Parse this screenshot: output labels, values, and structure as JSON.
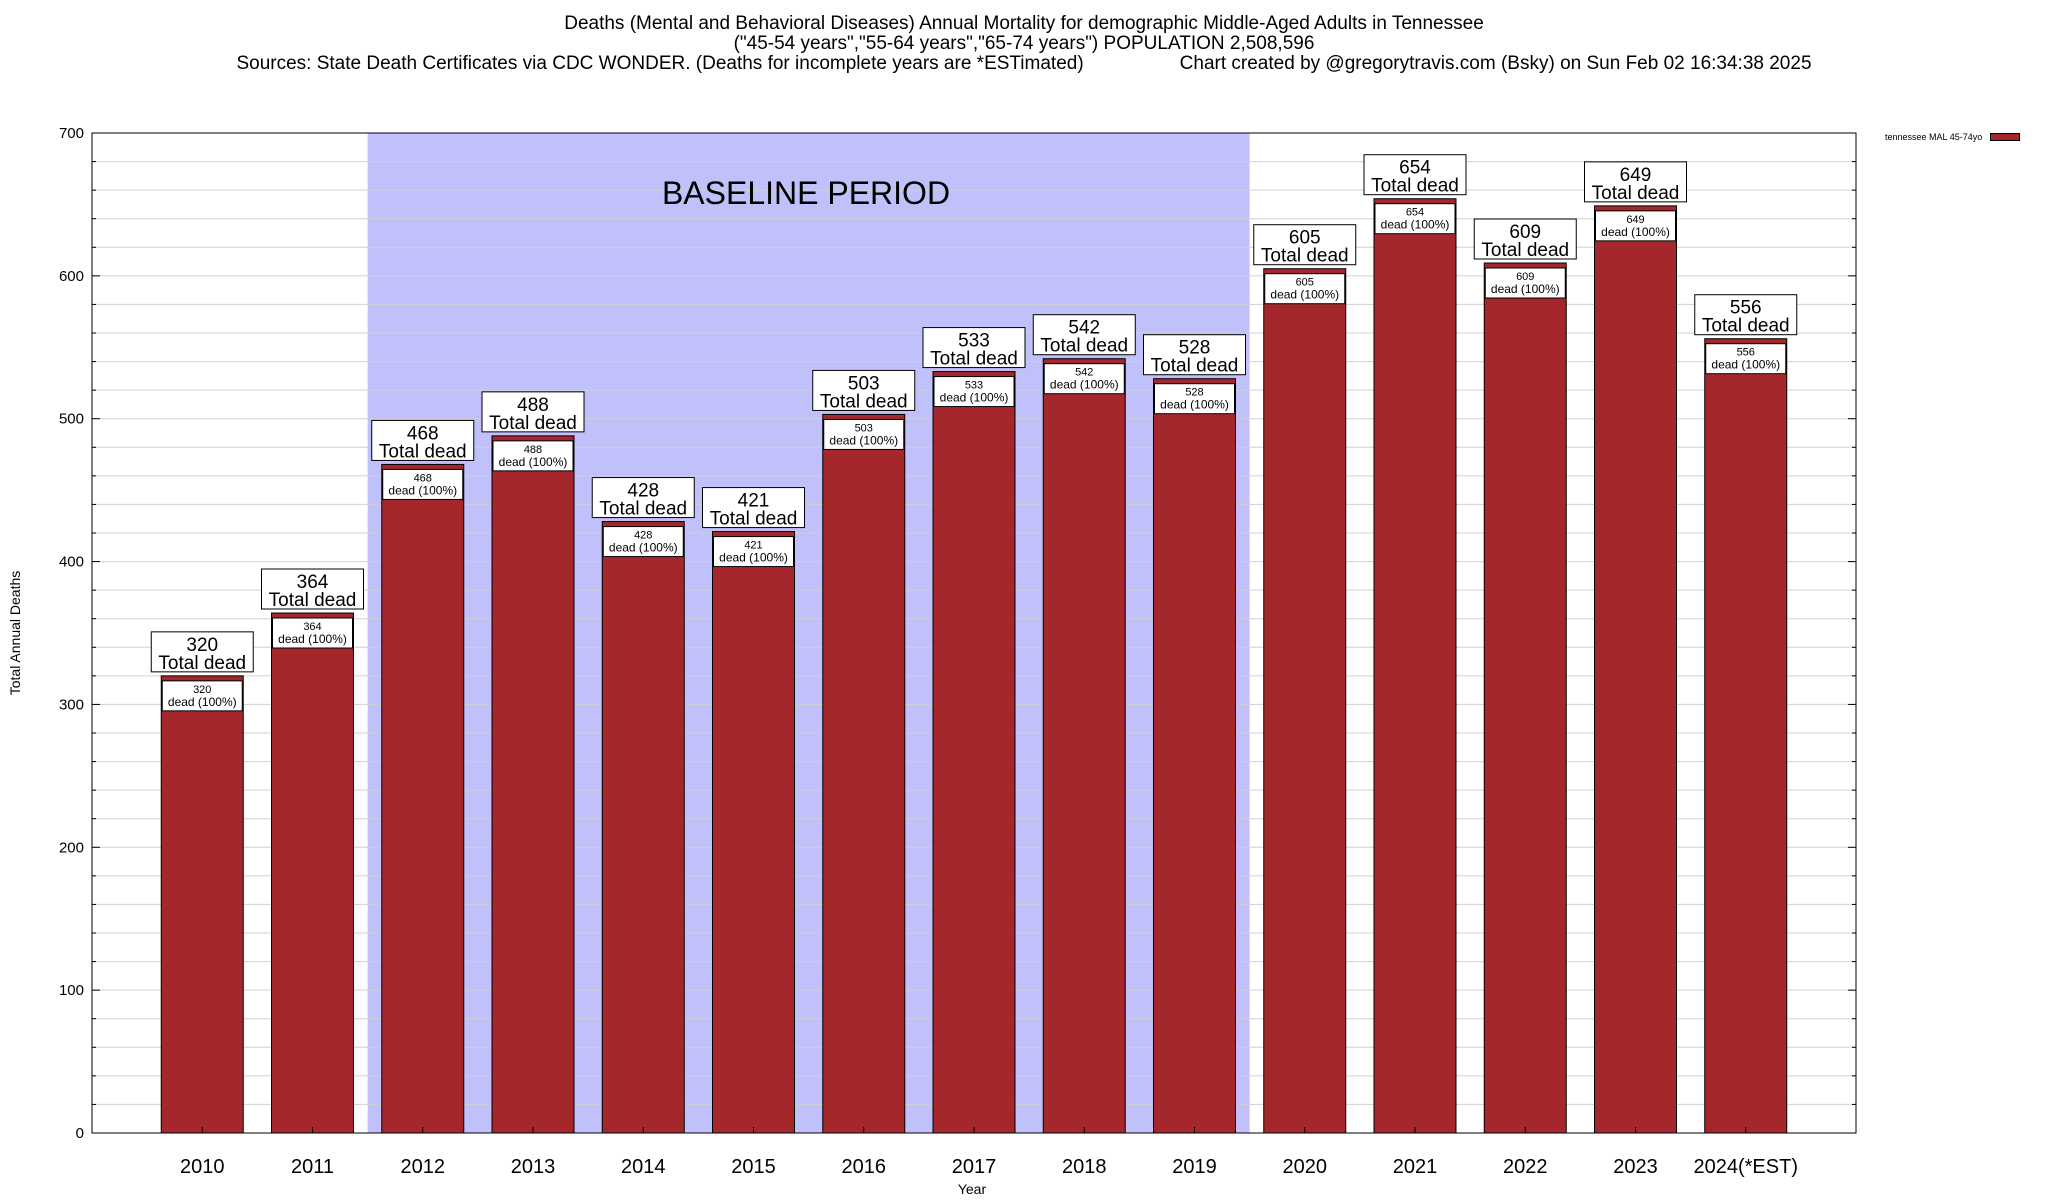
{
  "chart": {
    "title_line1": "Deaths (Mental and Behavioral Diseases) Annual Mortality for demographic Middle-Aged Adults in Tennessee",
    "title_line2": "(\"45-54 years\",\"55-64 years\",\"65-74 years\") POPULATION 2,508,596",
    "sources": "Sources: State Death Certificates via CDC WONDER. (Deaths for incomplete years are *ESTimated)",
    "credit": "Chart created by @gregorytravis.com (Bsky) on Sun Feb 02 16:34:38 2025",
    "baseline_label": "BASELINE PERIOD",
    "legend_label": "tennessee MAL 45-74yo"
  },
  "colors": {
    "bar": "#a4282b",
    "baseline_shade": "#c0c0fb",
    "grid": "#d0d0d0"
  },
  "chart_data": {
    "type": "bar",
    "title": "Deaths (Mental and Behavioral Diseases) Annual Mortality for demographic Middle-Aged Adults in Tennessee",
    "xlabel": "Year",
    "ylabel": "Total Annual Deaths",
    "ylim": [
      0,
      700
    ],
    "yticks": [
      0,
      100,
      200,
      300,
      400,
      500,
      600,
      700
    ],
    "grid": true,
    "legend_position": "top-right",
    "categories": [
      "2010",
      "2011",
      "2012",
      "2013",
      "2014",
      "2015",
      "2016",
      "2017",
      "2018",
      "2019",
      "2020",
      "2021",
      "2022",
      "2023",
      "2024(*EST)"
    ],
    "series": [
      {
        "name": "tennessee MAL 45-74yo",
        "values": [
          320,
          364,
          468,
          488,
          428,
          421,
          503,
          533,
          542,
          528,
          605,
          654,
          609,
          649,
          556
        ]
      }
    ],
    "top_label_suffix": "Total dead",
    "inner_label_suffix": "dead (100%)",
    "baseline_period": [
      "2012",
      "2019"
    ]
  }
}
